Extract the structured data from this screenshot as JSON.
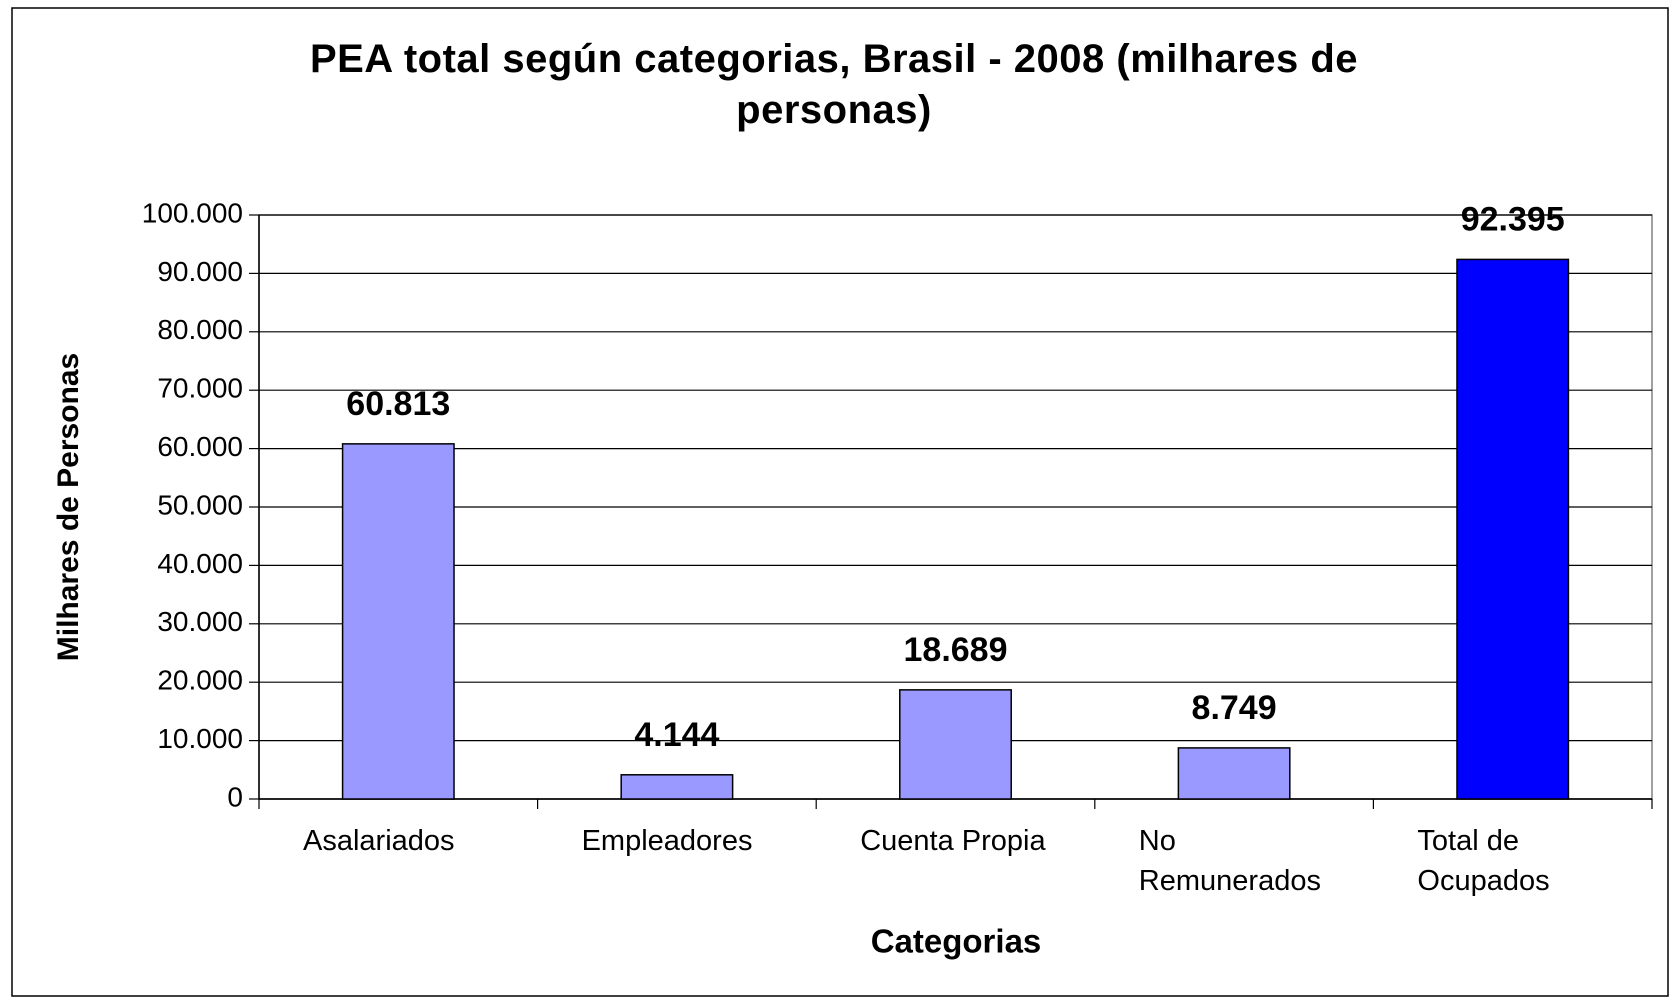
{
  "chart_data": {
    "type": "bar",
    "title": "PEA total según categorias, Brasil - 2008 (milhares de personas)",
    "x_label": "Categorias",
    "y_label": "Milhares de Personas",
    "categories": [
      "Asalariados",
      "Empleadores",
      "Cuenta Propia",
      "No Remunerados",
      "Total de Ocupados"
    ],
    "values": [
      60813,
      4144,
      18689,
      8749,
      92395
    ],
    "value_labels": [
      "60.813",
      "4.144",
      "18.689",
      "8.749",
      "92.395"
    ],
    "colors": [
      "#9999ff",
      "#9999ff",
      "#9999ff",
      "#9999ff",
      "#0000ff"
    ],
    "ylim": [
      0,
      100000
    ],
    "yticks": [
      0,
      {
        "value": 10000,
        "label": "10.000"
      },
      {
        "value": 20000,
        "label": "20.000"
      },
      {
        "value": 30000,
        "label": "30.000"
      },
      {
        "value": 40000,
        "label": "40.000"
      },
      {
        "value": 50000,
        "label": "50.000"
      },
      {
        "value": 60000,
        "label": "60.000"
      },
      {
        "value": 70000,
        "label": "70.000"
      },
      {
        "value": 80000,
        "label": "80.000"
      },
      {
        "value": 90000,
        "label": "90.000"
      },
      {
        "value": 100000,
        "label": "100.000"
      }
    ],
    "grid": true
  }
}
